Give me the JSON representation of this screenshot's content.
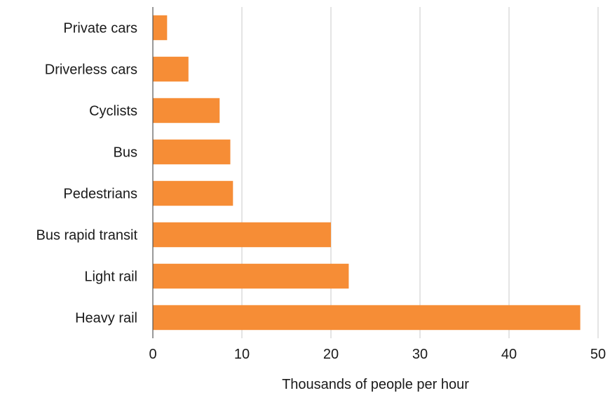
{
  "chart_data": {
    "type": "bar",
    "orientation": "horizontal",
    "categories": [
      "Private cars",
      "Driverless cars",
      "Cyclists",
      "Bus",
      "Pedestrians",
      "Bus rapid transit",
      "Light rail",
      "Heavy rail"
    ],
    "values": [
      1.6,
      4,
      7.5,
      8.7,
      9,
      20,
      22,
      48
    ],
    "xlabel": "Thousands of people per hour",
    "ylabel": "",
    "xlim": [
      0,
      50
    ],
    "xticks": [
      "0",
      "10",
      "20",
      "30",
      "40",
      "50"
    ],
    "grid": "vertical",
    "legend": "none",
    "bar_color": "#f68d36"
  }
}
